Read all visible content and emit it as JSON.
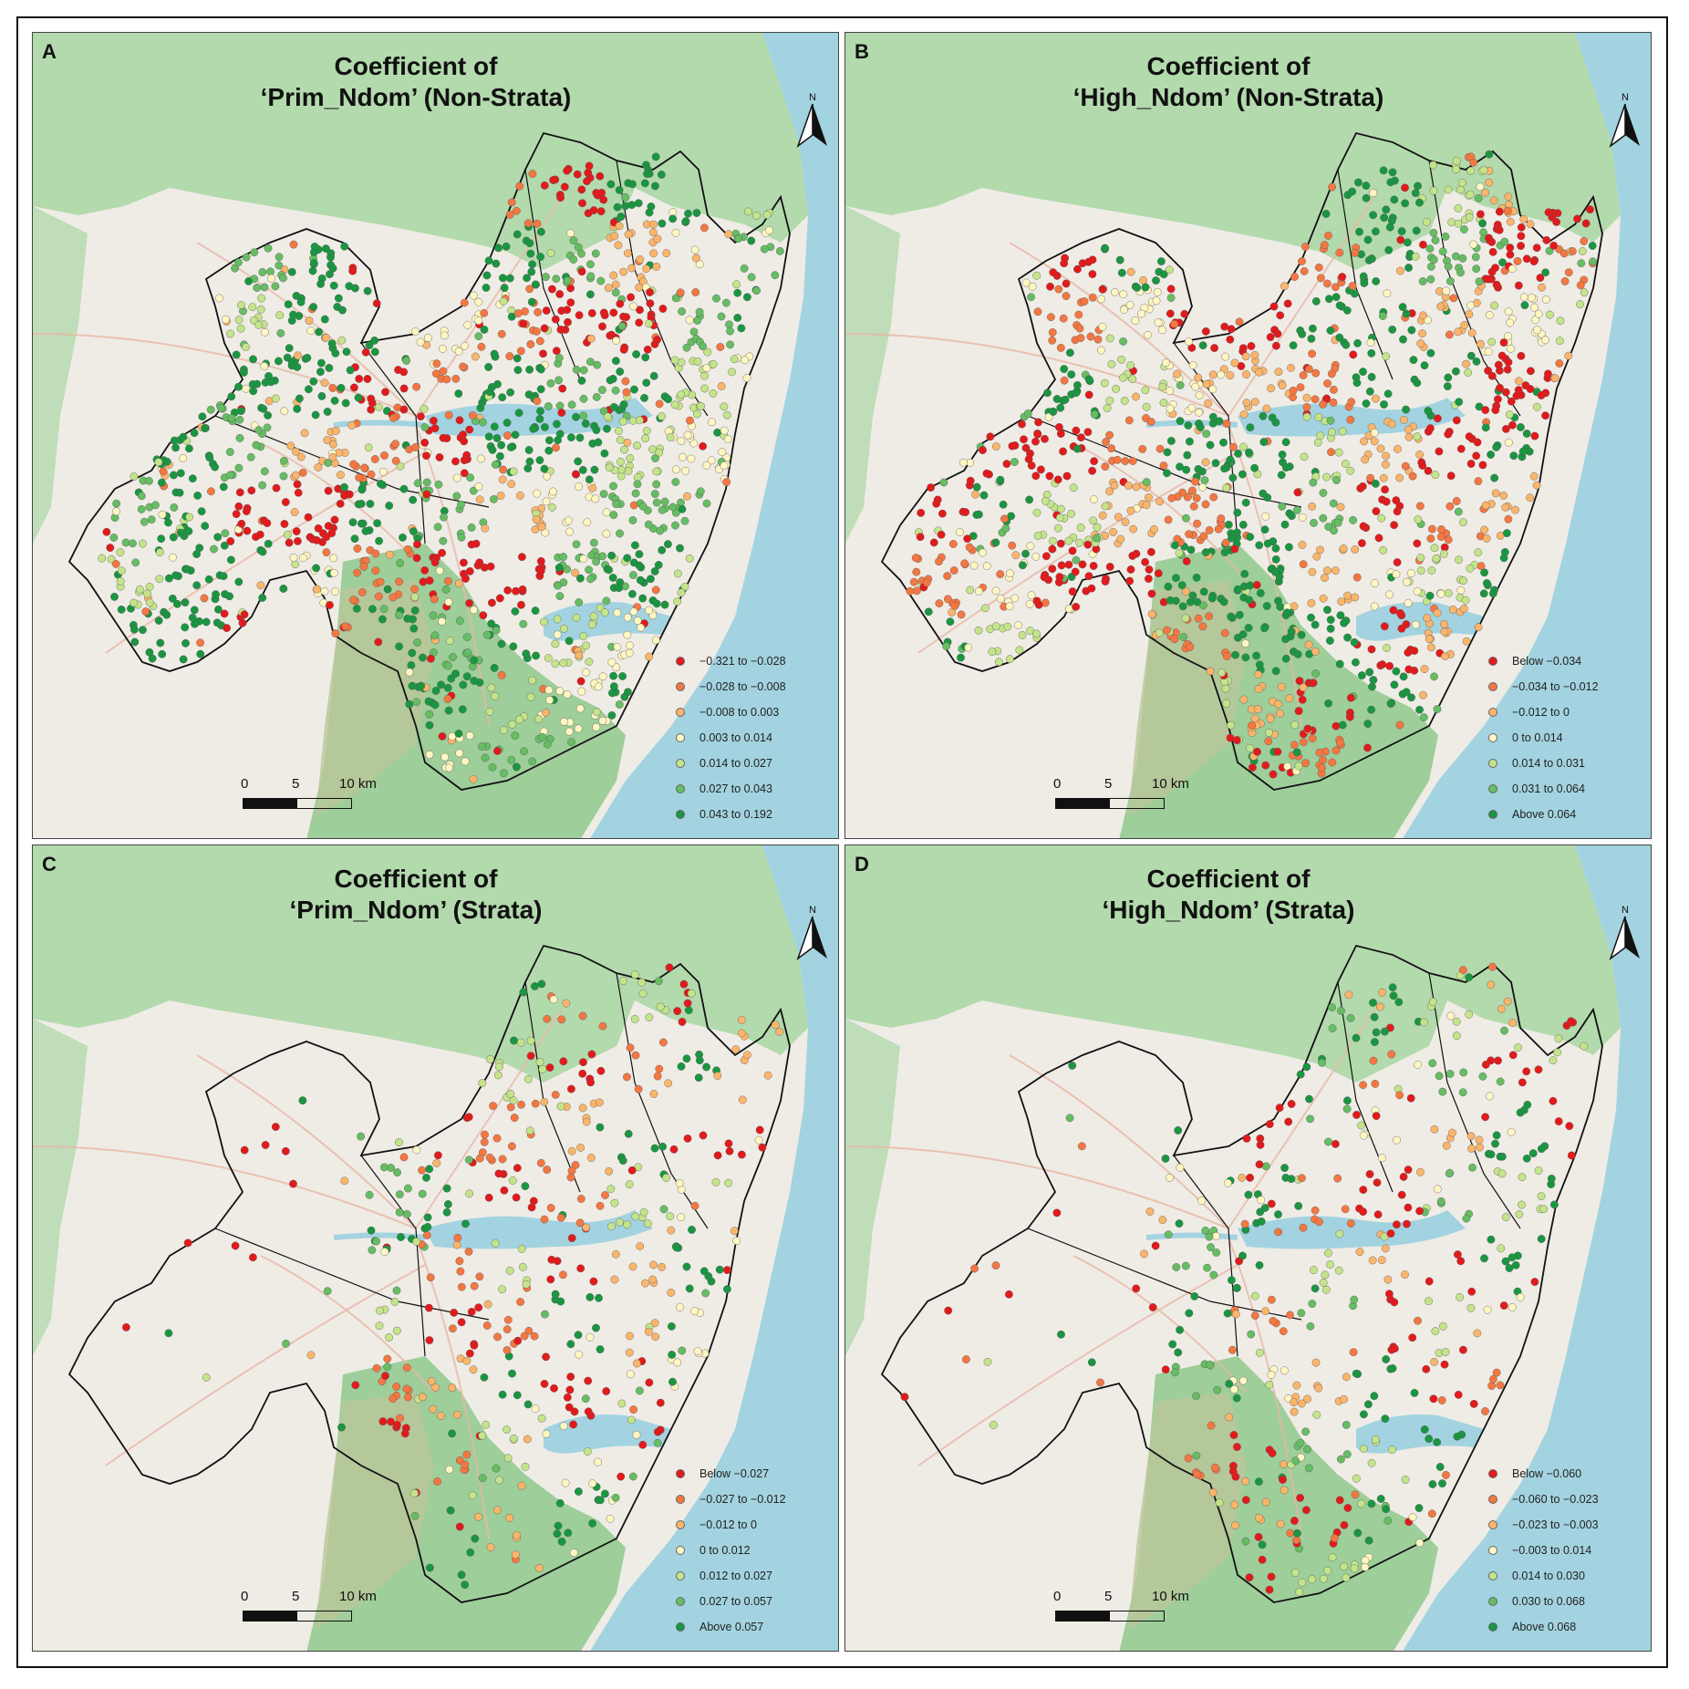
{
  "panels": [
    {
      "letter": "A",
      "title_line1": "Coefficient of",
      "title_line2": "‘Prim_Ndom’ (Non-Strata)",
      "legend": [
        {
          "label": "−0.321 to −0.028",
          "color": "#e31a1c"
        },
        {
          "label": "−0.028 to −0.008",
          "color": "#f47742"
        },
        {
          "label": "−0.008 to 0.003",
          "color": "#fbb56b"
        },
        {
          "label": "0.003 to 0.014",
          "color": "#fff6c2"
        },
        {
          "label": "0.014 to 0.027",
          "color": "#c4e48a"
        },
        {
          "label": "0.027 to 0.043",
          "color": "#66bd63"
        },
        {
          "label": "0.043 to 0.192",
          "color": "#1a9641"
        }
      ],
      "pattern": [
        5,
        5,
        2,
        1,
        3,
        4,
        6,
        6,
        3,
        1,
        0,
        0,
        5,
        6,
        4,
        2,
        3,
        5,
        6,
        6,
        0,
        1,
        6,
        5,
        6,
        4,
        3,
        3,
        6,
        6,
        6,
        5,
        2,
        1,
        0,
        6,
        6,
        4,
        3,
        6,
        2,
        1,
        5,
        6,
        0,
        0,
        6,
        5,
        2,
        3
      ]
    },
    {
      "letter": "B",
      "title_line1": "Coefficient of",
      "title_line2": "‘High_Ndom’ (Non-Strata)",
      "legend": [
        {
          "label": "Below −0.034",
          "color": "#e31a1c"
        },
        {
          "label": "−0.034 to −0.012",
          "color": "#f47742"
        },
        {
          "label": "−0.012 to 0",
          "color": "#fbb56b"
        },
        {
          "label": "0 to 0.014",
          "color": "#fff6c2"
        },
        {
          "label": "0.014 to 0.031",
          "color": "#c4e48a"
        },
        {
          "label": "0.031 to 0.064",
          "color": "#66bd63"
        },
        {
          "label": "Above 0.064",
          "color": "#1a9641"
        }
      ],
      "pattern": [
        1,
        2,
        0,
        6,
        5,
        1,
        3,
        0,
        0,
        6,
        6,
        2,
        3,
        4,
        6,
        1,
        0,
        0,
        6,
        4,
        3,
        2,
        1,
        6,
        6,
        0,
        2,
        5,
        6,
        3,
        0,
        0,
        1,
        6,
        6,
        4,
        2,
        0,
        6,
        5,
        1,
        3,
        0,
        6,
        4,
        2,
        1,
        6,
        5,
        0
      ]
    },
    {
      "letter": "C",
      "title_line1": "Coefficient of",
      "title_line2": "‘Prim_Ndom’ (Strata)",
      "legend": [
        {
          "label": "Below −0.027",
          "color": "#e31a1c"
        },
        {
          "label": "−0.027 to −0.012",
          "color": "#f47742"
        },
        {
          "label": "−0.012 to 0",
          "color": "#fbb56b"
        },
        {
          "label": "0 to 0.012",
          "color": "#fff6c2"
        },
        {
          "label": "0.012 to 0.027",
          "color": "#c4e48a"
        },
        {
          "label": "0.027 to 0.057",
          "color": "#66bd63"
        },
        {
          "label": "Above 0.057",
          "color": "#1a9641"
        }
      ],
      "pattern": [
        2,
        3,
        0,
        6,
        1,
        0,
        4,
        5,
        0,
        1,
        2,
        6,
        0,
        0,
        3,
        4,
        6,
        1,
        0,
        2,
        5,
        6,
        0,
        1,
        4,
        3,
        0,
        6,
        2,
        1,
        0,
        0,
        5,
        6,
        1,
        4,
        0,
        2,
        6,
        3,
        1,
        0,
        0,
        6,
        5,
        2,
        4,
        0,
        1,
        6
      ]
    },
    {
      "letter": "D",
      "title_line1": "Coefficient of",
      "title_line2": "‘High_Ndom’ (Strata)",
      "legend": [
        {
          "label": "Below −0.060",
          "color": "#e31a1c"
        },
        {
          "label": "−0.060 to −0.023",
          "color": "#f47742"
        },
        {
          "label": "−0.023 to −0.003",
          "color": "#fbb56b"
        },
        {
          "label": "−0.003 to 0.014",
          "color": "#fff6c2"
        },
        {
          "label": "0.014 to 0.030",
          "color": "#c4e48a"
        },
        {
          "label": "0.030 to 0.068",
          "color": "#66bd63"
        },
        {
          "label": "Above 0.068",
          "color": "#1a9641"
        }
      ],
      "pattern": [
        4,
        3,
        5,
        6,
        0,
        1,
        4,
        6,
        0,
        5,
        3,
        2,
        6,
        0,
        1,
        4,
        5,
        6,
        0,
        2,
        3,
        6,
        1,
        0,
        5,
        4,
        6,
        0,
        2,
        6,
        1,
        3,
        0,
        5,
        6,
        4,
        2,
        0,
        6,
        1,
        5,
        3,
        6,
        0,
        4,
        2,
        6,
        1,
        5,
        0
      ]
    }
  ],
  "scale": {
    "l0": "0",
    "l5": "5",
    "l10": "10 km"
  },
  "north_label": "N",
  "colors": {
    "water": "#a3d3e0",
    "park": "#8fcf8f",
    "urban": "#efece6",
    "boundary": "#111111"
  }
}
